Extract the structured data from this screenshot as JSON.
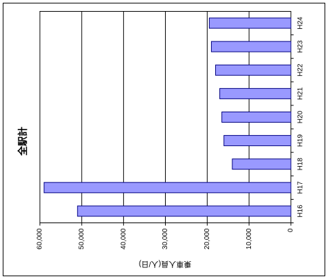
{
  "chart_data": {
    "type": "bar",
    "orientation": "rotated-horizontal",
    "title": "全駅計",
    "xlabel": "",
    "ylabel": "乗車人員(人/日)",
    "categories": [
      "H16",
      "H17",
      "H18",
      "H19",
      "H20",
      "H21",
      "H22",
      "H23",
      "H24"
    ],
    "values": [
      51000,
      59000,
      14000,
      16000,
      16500,
      17000,
      18000,
      19000,
      19500
    ],
    "value_ticks": [
      "0",
      "10,000",
      "20,000",
      "30,000",
      "40,000",
      "50,000",
      "60,000"
    ],
    "ylim": [
      0,
      60000
    ],
    "grid": true,
    "bar_color": "#9999ff",
    "bar_border_color": "#000080"
  }
}
